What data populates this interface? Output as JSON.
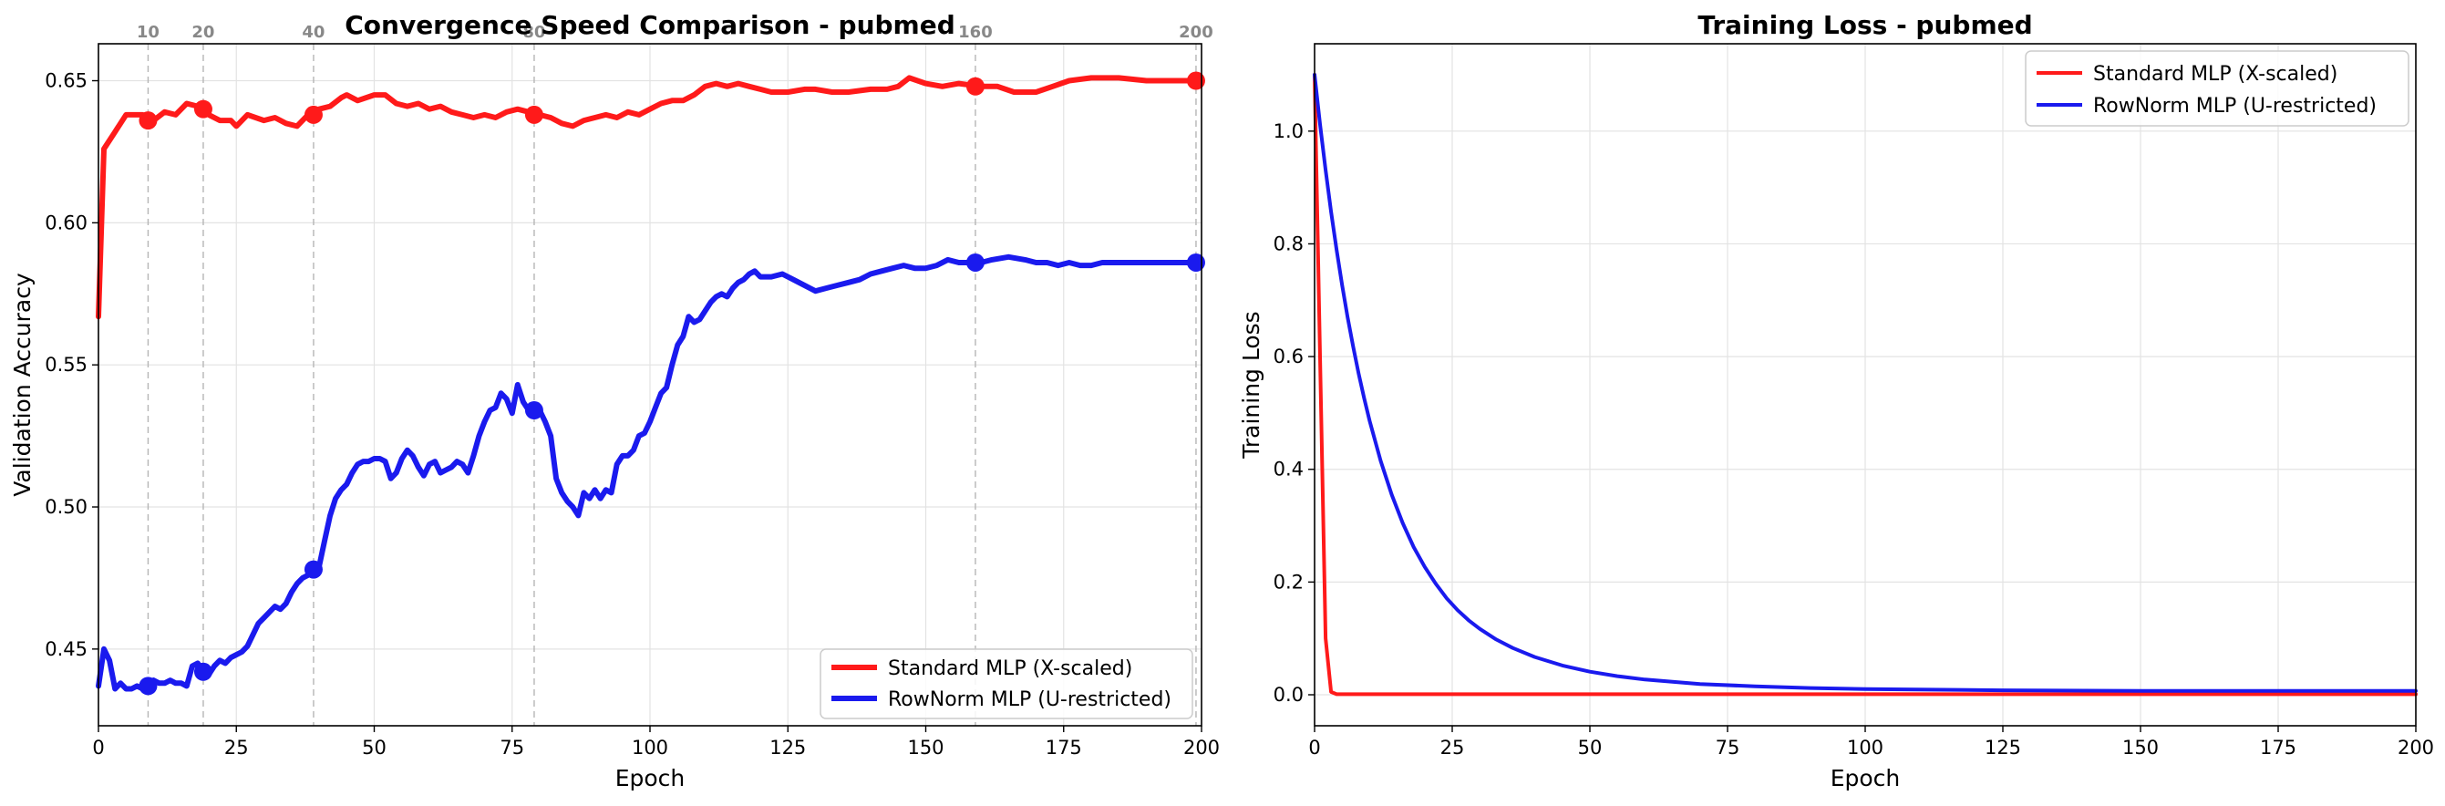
{
  "chart_data": [
    {
      "type": "line",
      "title": "Convergence Speed Comparison - pubmed",
      "xlabel": "Epoch",
      "ylabel": "Validation Accuracy",
      "xlim": [
        0,
        200
      ],
      "ylim": [
        0.423,
        0.663
      ],
      "xticks": [
        0,
        25,
        50,
        75,
        100,
        125,
        150,
        175,
        200
      ],
      "yticks": [
        0.45,
        0.5,
        0.55,
        0.6,
        0.65
      ],
      "ytick_labels": [
        "0.45",
        "0.50",
        "0.55",
        "0.60",
        "0.65"
      ],
      "grid": true,
      "legend_position": "lower-right",
      "milestone_epochs": [
        10,
        20,
        40,
        80,
        160,
        200
      ],
      "milestone_labels": [
        "10",
        "20",
        "40",
        "80",
        "160",
        "200"
      ],
      "series": [
        {
          "name": "Standard MLP (X-scaled)",
          "color": "#ff1a1a",
          "x": [
            0,
            1,
            3,
            5,
            8,
            10,
            12,
            14,
            16,
            18,
            20,
            22,
            24,
            25,
            27,
            30,
            32,
            34,
            36,
            38,
            40,
            42,
            44,
            45,
            47,
            50,
            52,
            54,
            56,
            58,
            60,
            62,
            64,
            66,
            68,
            70,
            72,
            74,
            76,
            78,
            80,
            82,
            84,
            86,
            88,
            90,
            92,
            94,
            96,
            98,
            100,
            102,
            104,
            106,
            108,
            110,
            112,
            114,
            116,
            118,
            120,
            122,
            125,
            128,
            130,
            133,
            136,
            140,
            143,
            145,
            147,
            150,
            153,
            156,
            160,
            163,
            166,
            170,
            173,
            176,
            180,
            185,
            190,
            195,
            200
          ],
          "y": [
            0.567,
            0.626,
            0.632,
            0.638,
            0.638,
            0.636,
            0.639,
            0.638,
            0.642,
            0.641,
            0.638,
            0.636,
            0.636,
            0.634,
            0.638,
            0.636,
            0.637,
            0.635,
            0.634,
            0.638,
            0.64,
            0.641,
            0.644,
            0.645,
            0.643,
            0.645,
            0.645,
            0.642,
            0.641,
            0.642,
            0.64,
            0.641,
            0.639,
            0.638,
            0.637,
            0.638,
            0.637,
            0.639,
            0.64,
            0.639,
            0.638,
            0.637,
            0.635,
            0.634,
            0.636,
            0.637,
            0.638,
            0.637,
            0.639,
            0.638,
            0.64,
            0.642,
            0.643,
            0.643,
            0.645,
            0.648,
            0.649,
            0.648,
            0.649,
            0.648,
            0.647,
            0.646,
            0.646,
            0.647,
            0.647,
            0.646,
            0.646,
            0.647,
            0.647,
            0.648,
            0.651,
            0.649,
            0.648,
            0.649,
            0.648,
            0.648,
            0.646,
            0.646,
            0.648,
            0.65,
            0.651,
            0.651,
            0.65,
            0.65,
            0.65
          ],
          "markers": [
            [
              9,
              0.636
            ],
            [
              19,
              0.64
            ],
            [
              39,
              0.638
            ],
            [
              79,
              0.638
            ],
            [
              159,
              0.648
            ],
            [
              199,
              0.65
            ]
          ]
        },
        {
          "name": "RowNorm MLP (U-restricted)",
          "color": "#1a1aee",
          "x": [
            0,
            1,
            2,
            3,
            4,
            5,
            6,
            7,
            8,
            9,
            10,
            11,
            12,
            13,
            14,
            15,
            16,
            17,
            18,
            19,
            20,
            21,
            22,
            23,
            24,
            25,
            26,
            27,
            28,
            29,
            30,
            31,
            32,
            33,
            34,
            35,
            36,
            37,
            38,
            39,
            40,
            41,
            42,
            43,
            44,
            45,
            46,
            47,
            48,
            49,
            50,
            51,
            52,
            53,
            54,
            55,
            56,
            57,
            58,
            59,
            60,
            61,
            62,
            63,
            64,
            65,
            66,
            67,
            68,
            69,
            70,
            71,
            72,
            73,
            74,
            75,
            76,
            77,
            78,
            79,
            80,
            81,
            82,
            83,
            84,
            85,
            86,
            87,
            88,
            89,
            90,
            91,
            92,
            93,
            94,
            95,
            96,
            97,
            98,
            99,
            100,
            101,
            102,
            103,
            104,
            105,
            106,
            107,
            108,
            109,
            110,
            111,
            112,
            113,
            114,
            115,
            116,
            117,
            118,
            119,
            120,
            122,
            124,
            126,
            128,
            130,
            132,
            134,
            136,
            138,
            140,
            142,
            144,
            146,
            148,
            150,
            152,
            154,
            156,
            158,
            160,
            162,
            165,
            168,
            170,
            172,
            174,
            176,
            178,
            180,
            182,
            185,
            190,
            195,
            200
          ],
          "y": [
            0.437,
            0.45,
            0.446,
            0.436,
            0.438,
            0.436,
            0.436,
            0.437,
            0.436,
            0.437,
            0.439,
            0.438,
            0.438,
            0.439,
            0.438,
            0.438,
            0.437,
            0.444,
            0.445,
            0.442,
            0.441,
            0.444,
            0.446,
            0.445,
            0.447,
            0.448,
            0.449,
            0.451,
            0.455,
            0.459,
            0.461,
            0.463,
            0.465,
            0.464,
            0.466,
            0.47,
            0.473,
            0.475,
            0.476,
            0.478,
            0.479,
            0.488,
            0.497,
            0.503,
            0.506,
            0.508,
            0.512,
            0.515,
            0.516,
            0.516,
            0.517,
            0.517,
            0.516,
            0.51,
            0.512,
            0.517,
            0.52,
            0.518,
            0.514,
            0.511,
            0.515,
            0.516,
            0.512,
            0.513,
            0.514,
            0.516,
            0.515,
            0.512,
            0.518,
            0.525,
            0.53,
            0.534,
            0.535,
            0.54,
            0.538,
            0.533,
            0.543,
            0.537,
            0.534,
            0.533,
            0.534,
            0.53,
            0.525,
            0.51,
            0.505,
            0.502,
            0.5,
            0.497,
            0.505,
            0.503,
            0.506,
            0.503,
            0.506,
            0.505,
            0.515,
            0.518,
            0.518,
            0.52,
            0.525,
            0.526,
            0.53,
            0.535,
            0.54,
            0.542,
            0.55,
            0.557,
            0.56,
            0.567,
            0.565,
            0.566,
            0.569,
            0.572,
            0.574,
            0.575,
            0.574,
            0.577,
            0.579,
            0.58,
            0.582,
            0.583,
            0.581,
            0.581,
            0.582,
            0.58,
            0.578,
            0.576,
            0.577,
            0.578,
            0.579,
            0.58,
            0.582,
            0.583,
            0.584,
            0.585,
            0.584,
            0.584,
            0.585,
            0.587,
            0.586,
            0.586,
            0.586,
            0.587,
            0.588,
            0.587,
            0.586,
            0.586,
            0.585,
            0.586,
            0.585,
            0.585,
            0.586,
            0.586,
            0.586,
            0.586,
            0.586
          ],
          "markers": [
            [
              9,
              0.437
            ],
            [
              19,
              0.442
            ],
            [
              39,
              0.478
            ],
            [
              79,
              0.534
            ],
            [
              159,
              0.586
            ],
            [
              199,
              0.586
            ]
          ]
        }
      ]
    },
    {
      "type": "line",
      "title": "Training Loss - pubmed",
      "xlabel": "Epoch",
      "ylabel": "Training Loss",
      "xlim": [
        0,
        200
      ],
      "ylim": [
        -0.055,
        1.155
      ],
      "xticks": [
        0,
        25,
        50,
        75,
        100,
        125,
        150,
        175,
        200
      ],
      "yticks": [
        0,
        0.2,
        0.4,
        0.6,
        0.8,
        1.0
      ],
      "ytick_labels": [
        "0.0",
        "0.2",
        "0.4",
        "0.6",
        "0.8",
        "1.0"
      ],
      "grid": true,
      "legend_position": "top-right",
      "series": [
        {
          "name": "Standard MLP (X-scaled)",
          "color": "#ff1a1a",
          "x": [
            0,
            1,
            2,
            3,
            4,
            6,
            10,
            20,
            50,
            100,
            150,
            200
          ],
          "y": [
            1.1,
            0.6,
            0.1,
            0.005,
            0.001,
            0.001,
            0.001,
            0.001,
            0.001,
            0.001,
            0.001,
            0.001
          ],
          "markers": []
        },
        {
          "name": "RowNorm MLP (U-restricted)",
          "color": "#1a1aee",
          "x": [
            0,
            1,
            2,
            3,
            4,
            5,
            6,
            7,
            8,
            9,
            10,
            12,
            14,
            16,
            18,
            20,
            22,
            24,
            26,
            28,
            30,
            33,
            36,
            40,
            45,
            50,
            55,
            60,
            70,
            80,
            90,
            100,
            125,
            150,
            175,
            200
          ],
          "y": [
            1.1,
            1.012,
            0.931,
            0.857,
            0.789,
            0.727,
            0.67,
            0.618,
            0.57,
            0.526,
            0.486,
            0.415,
            0.355,
            0.305,
            0.262,
            0.227,
            0.197,
            0.171,
            0.15,
            0.132,
            0.117,
            0.098,
            0.083,
            0.067,
            0.052,
            0.041,
            0.033,
            0.027,
            0.019,
            0.015,
            0.012,
            0.01,
            0.008,
            0.007,
            0.007,
            0.007
          ],
          "markers": []
        }
      ]
    }
  ]
}
